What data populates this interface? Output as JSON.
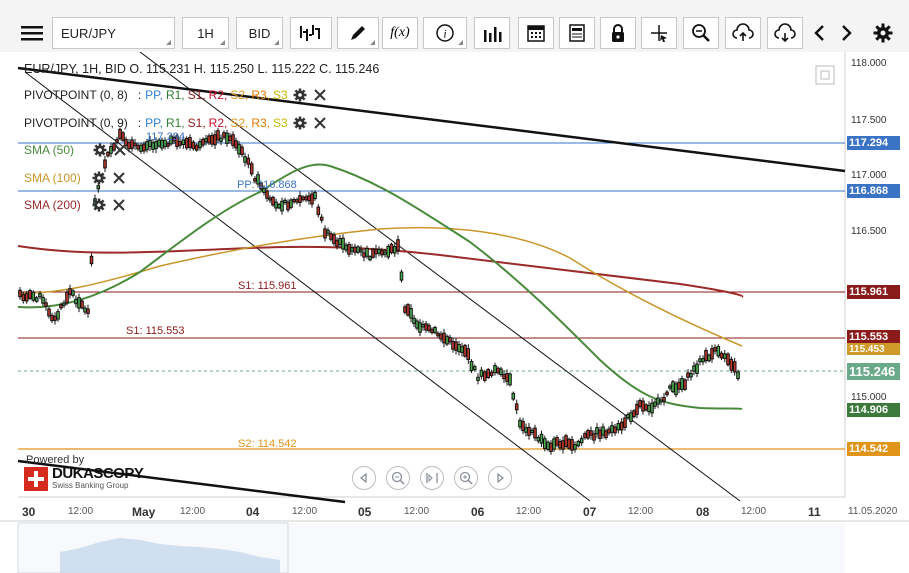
{
  "toolbar": {
    "menu_icon": "hamburger-menu-icon",
    "instrument": "EUR/JPY",
    "period": "1H",
    "side": "BID",
    "icons": [
      "candlestick-type-icon",
      "pencil-draw-icon",
      "function-fx-icon",
      "info-icon",
      "bar-chart-icon",
      "calendar-icon",
      "news-document-icon",
      "lock-icon",
      "crosshair-icon",
      "zoom-icon",
      "cloud-upload-icon",
      "cloud-download-icon",
      "chevron-left-icon",
      "chevron-right-icon",
      "gear-icon"
    ],
    "fx_label": "f(x)"
  },
  "legend": {
    "ohlc": "EUR/JPY, 1H, BID    O. 115.231  H. 115.250  L. 115.222  C. 115.246",
    "pivot1_name": "PIVOTPOINT (0, 8)",
    "pivot2_name": "PIVOTPOINT (0, 9)",
    "pivot_sep": ":",
    "pivot_levels": [
      {
        "text": "PP,",
        "color": "#2f7fd8"
      },
      {
        "text": "R1,",
        "color": "#2e7d32"
      },
      {
        "text": "S1,",
        "color": "#8b1a1a"
      },
      {
        "text": "R2,",
        "color": "#c8102e"
      },
      {
        "text": "S2,",
        "color": "#e0951a"
      },
      {
        "text": "R3,",
        "color": "#e07b00"
      },
      {
        "text": "S3",
        "color": "#c5b800"
      }
    ],
    "sma50": "SMA (50)",
    "sma100": "SMA (100)",
    "sma200": "SMA (200)",
    "colors": {
      "sma50": "#4a8a3c",
      "sma100": "#c8962a",
      "sma200": "#9b2a2a"
    }
  },
  "levels": {
    "r1_label": "117.294",
    "pp_label": "PP: 116.868",
    "s1a_label": "S1: 115.961",
    "s1b_label": "S1: 115.553",
    "s2_label": "S2: 114.542"
  },
  "price_axis": {
    "ticks": [
      "118.000",
      "117.500",
      "117.000",
      "116.500",
      "115.000"
    ],
    "tags": [
      {
        "text": "117.294",
        "color": "#3a73c4"
      },
      {
        "text": "116.868",
        "color": "#3a73c4"
      },
      {
        "text": "115.961",
        "color": "#8b1a1a"
      },
      {
        "text": "115.553",
        "color": "#8b1a1a"
      },
      {
        "text": "115.453",
        "color": "#d09a2a"
      },
      {
        "text": "115.246",
        "color": "#6aa98a"
      },
      {
        "text": "114.906",
        "color": "#3c7a3c"
      },
      {
        "text": "114.542",
        "color": "#e0951a"
      }
    ]
  },
  "time_axis": {
    "labels": [
      "30",
      "12:00",
      "May",
      "12:00",
      "04",
      "12:00",
      "05",
      "12:00",
      "06",
      "12:00",
      "07",
      "12:00",
      "08",
      "12:00",
      "11",
      "11.05.2020"
    ]
  },
  "branding": {
    "powered_by": "Powered by",
    "company": "DUKASCOPY",
    "tagline": "Swiss Banking Group"
  },
  "navigator": {
    "buttons": [
      "nav-left-icon",
      "zoom-out-icon",
      "fit-icon",
      "zoom-in-icon",
      "nav-right-icon"
    ]
  }
}
